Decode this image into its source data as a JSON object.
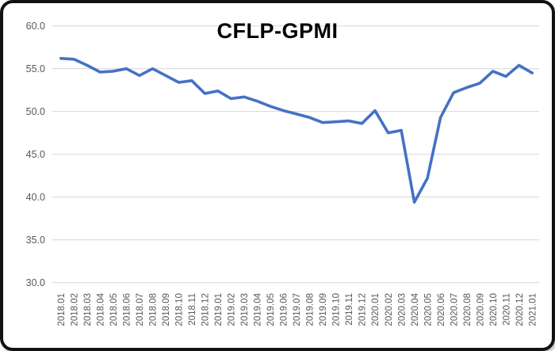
{
  "chart_data": {
    "type": "line",
    "title": "CFLP-GPMI",
    "xlabel": "",
    "ylabel": "",
    "ylim": [
      30,
      60
    ],
    "ytick_values": [
      60,
      55,
      50,
      45,
      40,
      35,
      30
    ],
    "ytick_labels": [
      "60.0",
      "55.0",
      "50.0",
      "45.0",
      "40.0",
      "35.0",
      "30.0"
    ],
    "grid": true,
    "legend": "none",
    "categories": [
      "2018.01",
      "2018.02",
      "2018.03",
      "2018.04",
      "2018.05",
      "2018.06",
      "2018.07",
      "2018.08",
      "2018.09",
      "2018.10",
      "2018.11",
      "2018.12",
      "2019.01",
      "2019.02",
      "2019.03",
      "2019.04",
      "2019.05",
      "2019.06",
      "2019.07",
      "2019.08",
      "2019.09",
      "2019.10",
      "2019.11",
      "2019.12",
      "2020.01",
      "2020.02",
      "2020.03",
      "2020.04",
      "2020.05",
      "2020.06",
      "2020.07",
      "2020.08",
      "2020.09",
      "2020.10",
      "2020.11",
      "2020.12",
      "2021.01"
    ],
    "series": [
      {
        "name": "CFLP-GPMI",
        "values": [
          56.2,
          56.1,
          55.4,
          54.6,
          54.7,
          55.0,
          54.2,
          55.0,
          54.2,
          53.4,
          53.6,
          52.1,
          52.4,
          51.5,
          51.7,
          51.2,
          50.6,
          50.1,
          49.7,
          49.3,
          48.7,
          48.8,
          48.9,
          48.6,
          50.1,
          47.5,
          47.8,
          39.4,
          42.2,
          49.3,
          52.2,
          52.8,
          53.3,
          54.7,
          54.1,
          55.4,
          54.5
        ]
      }
    ],
    "colors": {
      "line": "#4472C4",
      "grid": "#D9D9D9",
      "tick_label": "#595959",
      "title": "#000000",
      "frame": "#111111"
    }
  }
}
